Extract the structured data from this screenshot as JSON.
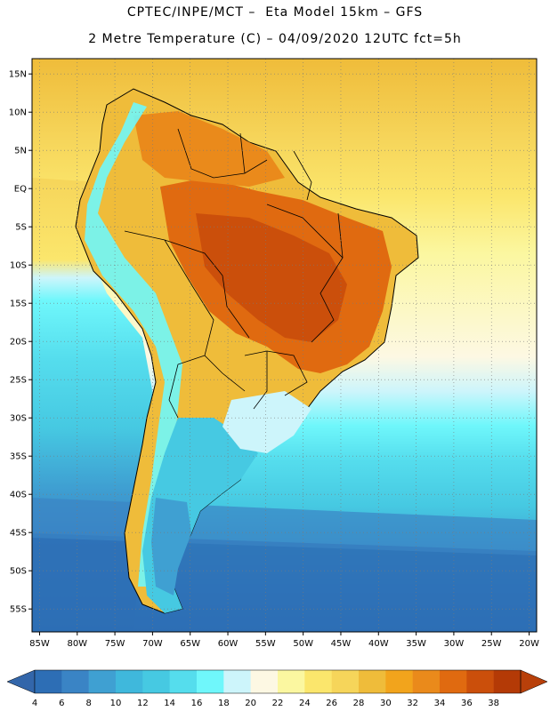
{
  "title": {
    "line1": "CPTEC/INPE/MCT –  Eta Model 15km – GFS",
    "line2": "2 Metre Temperature (C) – 04/09/2020 12UTC fct=5h"
  },
  "map": {
    "lon_range": [
      -86,
      -19
    ],
    "lat_range": [
      -58,
      17
    ],
    "lat_ticks": [
      {
        "value": 15,
        "label": "15N"
      },
      {
        "value": 10,
        "label": "10N"
      },
      {
        "value": 5,
        "label": "5N"
      },
      {
        "value": 0,
        "label": "EQ"
      },
      {
        "value": -5,
        "label": "5S"
      },
      {
        "value": -10,
        "label": "10S"
      },
      {
        "value": -15,
        "label": "15S"
      },
      {
        "value": -20,
        "label": "20S"
      },
      {
        "value": -25,
        "label": "25S"
      },
      {
        "value": -30,
        "label": "30S"
      },
      {
        "value": -35,
        "label": "35S"
      },
      {
        "value": -40,
        "label": "40S"
      },
      {
        "value": -45,
        "label": "45S"
      },
      {
        "value": -50,
        "label": "50S"
      },
      {
        "value": -55,
        "label": "55S"
      }
    ],
    "lon_ticks": [
      {
        "value": -85,
        "label": "85W"
      },
      {
        "value": -80,
        "label": "80W"
      },
      {
        "value": -75,
        "label": "75W"
      },
      {
        "value": -70,
        "label": "70W"
      },
      {
        "value": -65,
        "label": "65W"
      },
      {
        "value": -60,
        "label": "60W"
      },
      {
        "value": -55,
        "label": "55W"
      },
      {
        "value": -50,
        "label": "50W"
      },
      {
        "value": -45,
        "label": "45W"
      },
      {
        "value": -40,
        "label": "40W"
      },
      {
        "value": -35,
        "label": "35W"
      },
      {
        "value": -30,
        "label": "30W"
      },
      {
        "value": -25,
        "label": "25W"
      },
      {
        "value": -20,
        "label": "20W"
      }
    ]
  },
  "colorbar": {
    "levels": [
      "4",
      "6",
      "8",
      "10",
      "12",
      "14",
      "16",
      "18",
      "20",
      "22",
      "24",
      "26",
      "28",
      "30",
      "32",
      "34",
      "36",
      "38"
    ],
    "colors": [
      "#2d6eb5",
      "#3a84c5",
      "#3fa0d2",
      "#3fb8dc",
      "#46c9e2",
      "#55dded",
      "#6ff7fb",
      "#cdf5fb",
      "#fdf8e3",
      "#fbf7a0",
      "#fbe66c",
      "#f6d55a",
      "#efbc3a",
      "#f2a41c",
      "#ea8a1b",
      "#e06a10",
      "#cb4f0b",
      "#b43a06"
    ],
    "low_color": "#3366aa",
    "high_color": "#b8400a"
  }
}
